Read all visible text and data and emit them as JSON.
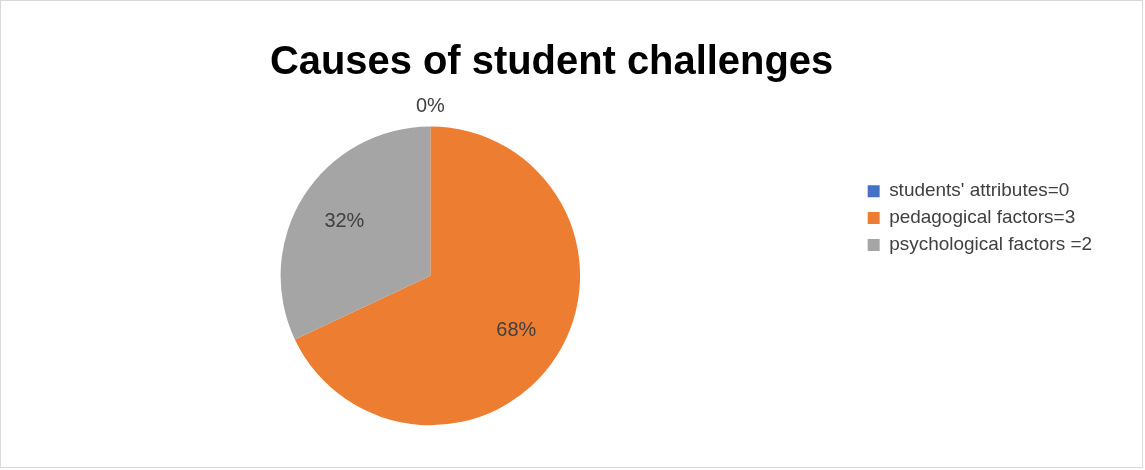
{
  "chart_data": {
    "type": "pie",
    "title": "Causes of student challenges",
    "categories": [
      "students' attributes=0",
      "pedagogical factors=3",
      "psychological factors =2"
    ],
    "values": [
      0,
      68,
      32
    ],
    "value_labels": [
      "0%",
      "68%",
      "32%"
    ],
    "colors": [
      "#4472c4",
      "#ed7d31",
      "#a5a5a5"
    ],
    "legend": "right"
  }
}
